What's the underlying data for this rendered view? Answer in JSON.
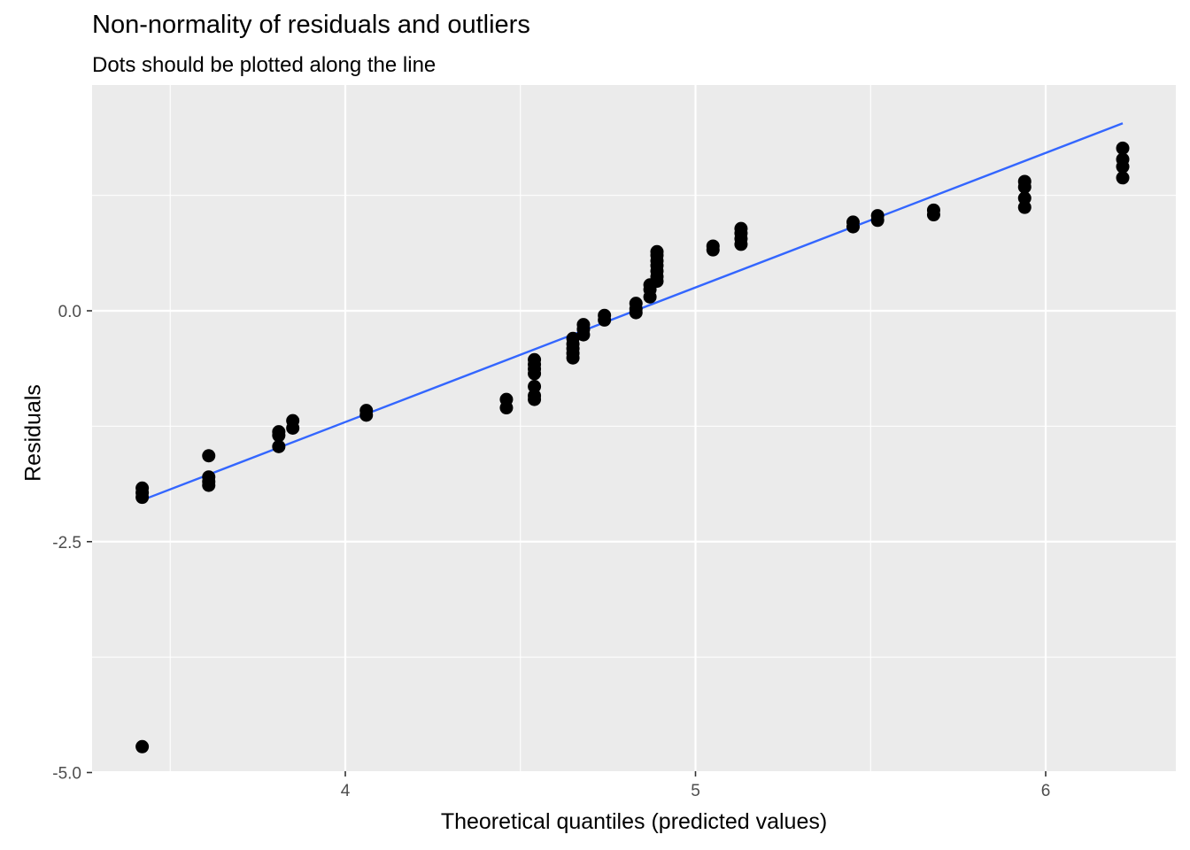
{
  "chart_data": {
    "type": "scatter",
    "title": "Non-normality of residuals and outliers",
    "subtitle": "Dots should be plotted along the line",
    "xlabel": "Theoretical quantiles (predicted values)",
    "ylabel": "Residuals",
    "xlim": [
      3.42,
      6.37
    ],
    "ylim": [
      -5.0,
      2.4
    ],
    "x_ticks": [
      4,
      5,
      6
    ],
    "x_tick_labels": [
      "4",
      "5",
      "6"
    ],
    "y_ticks": [
      -5.0,
      -2.5,
      0.0
    ],
    "y_tick_labels": [
      "-5.0",
      "-2.5",
      "0.0"
    ],
    "grid": true,
    "background": "#ebebeb",
    "point_color": "#000000",
    "line_color": "#3366ff",
    "series": [
      {
        "points": [
          [
            3.42,
            -1.92
          ],
          [
            3.42,
            -1.97
          ],
          [
            3.42,
            -2.02
          ],
          [
            3.42,
            -4.72
          ],
          [
            3.61,
            -1.57
          ],
          [
            3.61,
            -1.8
          ],
          [
            3.61,
            -1.85
          ],
          [
            3.61,
            -1.89
          ],
          [
            3.81,
            -1.31
          ],
          [
            3.81,
            -1.35
          ],
          [
            3.81,
            -1.47
          ],
          [
            3.85,
            -1.19
          ],
          [
            3.85,
            -1.27
          ],
          [
            4.06,
            -1.08
          ],
          [
            4.06,
            -1.13
          ],
          [
            4.46,
            -0.96
          ],
          [
            4.46,
            -1.05
          ],
          [
            4.54,
            -0.53
          ],
          [
            4.54,
            -0.58
          ],
          [
            4.54,
            -0.63
          ],
          [
            4.54,
            -0.68
          ],
          [
            4.54,
            -0.82
          ],
          [
            4.54,
            -0.92
          ],
          [
            4.54,
            -0.96
          ],
          [
            4.65,
            -0.3
          ],
          [
            4.65,
            -0.36
          ],
          [
            4.65,
            -0.41
          ],
          [
            4.65,
            -0.46
          ],
          [
            4.65,
            -0.51
          ],
          [
            4.68,
            -0.15
          ],
          [
            4.68,
            -0.2
          ],
          [
            4.68,
            -0.26
          ],
          [
            4.74,
            -0.05
          ],
          [
            4.74,
            -0.1
          ],
          [
            4.83,
            0.08
          ],
          [
            4.83,
            0.02
          ],
          [
            4.83,
            -0.02
          ],
          [
            4.87,
            0.15
          ],
          [
            4.87,
            0.23
          ],
          [
            4.87,
            0.28
          ],
          [
            4.89,
            0.32
          ],
          [
            4.89,
            0.37
          ],
          [
            4.89,
            0.43
          ],
          [
            4.89,
            0.49
          ],
          [
            4.89,
            0.54
          ],
          [
            4.89,
            0.6
          ],
          [
            4.89,
            0.64
          ],
          [
            5.05,
            0.66
          ],
          [
            5.05,
            0.7
          ],
          [
            5.13,
            0.72
          ],
          [
            5.13,
            0.78
          ],
          [
            5.13,
            0.84
          ],
          [
            5.13,
            0.89
          ],
          [
            5.45,
            0.91
          ],
          [
            5.45,
            0.96
          ],
          [
            5.52,
            0.98
          ],
          [
            5.52,
            1.03
          ],
          [
            5.68,
            1.04
          ],
          [
            5.68,
            1.09
          ],
          [
            5.94,
            1.12
          ],
          [
            5.94,
            1.22
          ],
          [
            5.94,
            1.34
          ],
          [
            5.94,
            1.4
          ],
          [
            6.22,
            1.44
          ],
          [
            6.22,
            1.56
          ],
          [
            6.22,
            1.64
          ],
          [
            6.22,
            1.76
          ]
        ]
      }
    ],
    "reference_line": {
      "x": [
        3.42,
        6.22
      ],
      "y": [
        -2.05,
        2.03
      ]
    }
  }
}
